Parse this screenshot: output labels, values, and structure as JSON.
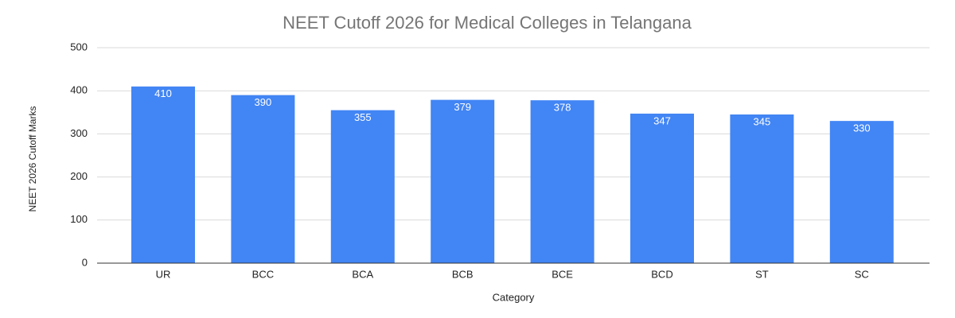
{
  "chart_data": {
    "type": "bar",
    "title": "NEET Cutoff 2026 for Medical Colleges in Telangana",
    "x_label": "Category",
    "y_label": "NEET 2026 Cutoff Marks",
    "categories": [
      "UR",
      "BCC",
      "BCA",
      "BCB",
      "BCE",
      "BCD",
      "ST",
      "SC"
    ],
    "values": [
      410,
      390,
      355,
      379,
      378,
      347,
      345,
      330
    ],
    "color": "#4285f4",
    "ylim": [
      0,
      500
    ],
    "yticks": [
      0,
      100,
      200,
      300,
      400,
      500
    ],
    "grid": true
  }
}
